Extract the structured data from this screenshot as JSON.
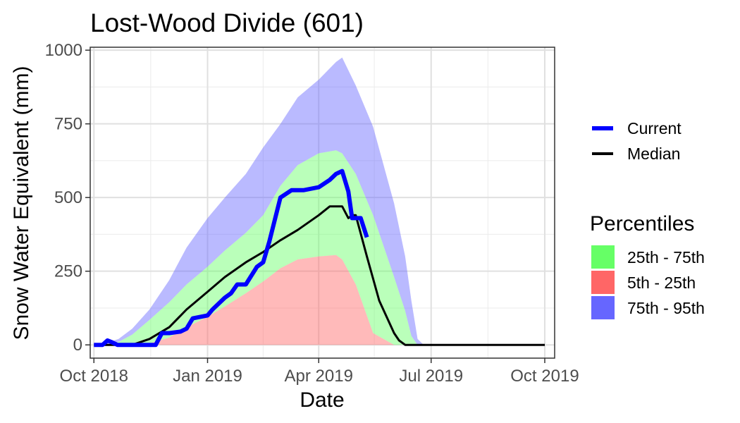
{
  "chart_data": {
    "type": "area",
    "title": "Lost-Wood Divide (601)",
    "xlabel": "Date",
    "ylabel": "Snow Water Equivalent (mm)",
    "xlim": [
      "2018-09-28",
      "2019-10-09"
    ],
    "ylim": [
      -45,
      1010
    ],
    "x_ticks": [
      "2018-10-01",
      "2019-01-01",
      "2019-04-01",
      "2019-07-01",
      "2019-10-01"
    ],
    "x_tick_labels": [
      "Oct 2018",
      "Jan 2019",
      "Apr 2019",
      "Jul 2019",
      "Oct 2019"
    ],
    "y_ticks": [
      0,
      250,
      500,
      750,
      1000
    ],
    "y_tick_labels": [
      "0",
      "250",
      "500",
      "750",
      "1000"
    ],
    "grid": true,
    "colors": {
      "current": "#0000ff",
      "median": "#000000",
      "p25_75": "#66ff66",
      "p5_25": "#ff6666",
      "p75_95": "#6666ff"
    },
    "legend": {
      "placement": "right",
      "lines": [
        {
          "key": "current",
          "label": "Current"
        },
        {
          "key": "median",
          "label": "Median"
        }
      ],
      "percentile_title": "Percentiles",
      "fills": [
        {
          "key": "p25_75",
          "label": "25th - 75th"
        },
        {
          "key": "p5_25",
          "label": "5th - 25th"
        },
        {
          "key": "p75_95",
          "label": "75th - 95th"
        }
      ]
    },
    "bands": {
      "x": [
        "2018-10-01",
        "2018-10-10",
        "2018-10-21",
        "2018-11-01",
        "2018-11-15",
        "2018-12-01",
        "2018-12-15",
        "2019-01-01",
        "2019-01-15",
        "2019-02-01",
        "2019-02-15",
        "2019-03-01",
        "2019-03-15",
        "2019-04-01",
        "2019-04-15",
        "2019-04-20",
        "2019-05-01",
        "2019-05-15",
        "2019-06-01",
        "2019-06-10",
        "2019-06-15",
        "2019-06-20",
        "2019-06-25",
        "2019-07-01",
        "2019-10-01"
      ],
      "p5": [
        0,
        0,
        0,
        0,
        0,
        0,
        0,
        0,
        0,
        0,
        0,
        0,
        0,
        0,
        0,
        0,
        0,
        0,
        0,
        0,
        0,
        0,
        0,
        0,
        0
      ],
      "p25": [
        0,
        0,
        0,
        0,
        5,
        25,
        60,
        95,
        130,
        175,
        215,
        260,
        290,
        300,
        305,
        290,
        205,
        40,
        0,
        0,
        0,
        0,
        0,
        0,
        0
      ],
      "p75": [
        0,
        0,
        10,
        35,
        85,
        145,
        205,
        265,
        320,
        380,
        440,
        540,
        610,
        650,
        660,
        650,
        580,
        440,
        230,
        115,
        30,
        0,
        0,
        0,
        0
      ],
      "p95": [
        0,
        5,
        20,
        55,
        120,
        220,
        330,
        430,
        500,
        580,
        670,
        750,
        840,
        900,
        960,
        975,
        880,
        740,
        480,
        300,
        150,
        20,
        0,
        0,
        0
      ]
    },
    "median": {
      "x": [
        "2018-10-01",
        "2018-10-15",
        "2018-11-01",
        "2018-11-15",
        "2018-12-01",
        "2018-12-15",
        "2019-01-01",
        "2019-01-15",
        "2019-02-01",
        "2019-02-15",
        "2019-03-01",
        "2019-03-15",
        "2019-04-01",
        "2019-04-10",
        "2019-04-20",
        "2019-04-25",
        "2019-04-28",
        "2019-05-01",
        "2019-05-10",
        "2019-05-20",
        "2019-06-01",
        "2019-06-05",
        "2019-06-10",
        "2019-06-15",
        "2019-07-01",
        "2019-10-01"
      ],
      "values": [
        0,
        0,
        0,
        20,
        60,
        120,
        180,
        230,
        280,
        315,
        355,
        390,
        440,
        470,
        470,
        430,
        440,
        440,
        300,
        150,
        40,
        15,
        0,
        0,
        0,
        0
      ]
    },
    "current": {
      "x": [
        "2018-10-01",
        "2018-10-08",
        "2018-10-12",
        "2018-10-15",
        "2018-10-20",
        "2018-11-01",
        "2018-11-10",
        "2018-11-20",
        "2018-11-25",
        "2018-12-01",
        "2018-12-10",
        "2018-12-15",
        "2018-12-20",
        "2019-01-01",
        "2019-01-05",
        "2019-01-15",
        "2019-01-20",
        "2019-01-25",
        "2019-02-01",
        "2019-02-10",
        "2019-02-15",
        "2019-02-20",
        "2019-03-01",
        "2019-03-10",
        "2019-03-15",
        "2019-03-20",
        "2019-04-01",
        "2019-04-10",
        "2019-04-15",
        "2019-04-20",
        "2019-04-25",
        "2019-04-28",
        "2019-05-05",
        "2019-05-10"
      ],
      "values": [
        0,
        0,
        15,
        10,
        0,
        0,
        0,
        0,
        40,
        40,
        45,
        55,
        90,
        100,
        120,
        160,
        175,
        205,
        205,
        265,
        280,
        350,
        500,
        525,
        525,
        525,
        535,
        560,
        580,
        590,
        520,
        430,
        430,
        365
      ]
    }
  }
}
